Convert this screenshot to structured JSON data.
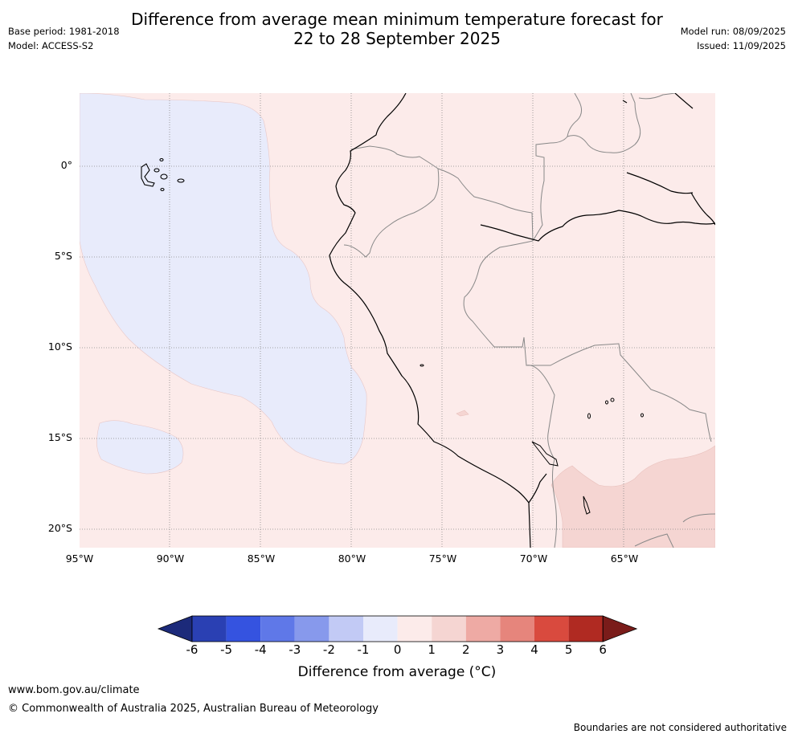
{
  "title_line1": "Difference from average mean minimum temperature forecast for",
  "title_line2": "22 to 28 September 2025",
  "base_period": "Base period: 1981-2018",
  "model": "Model: ACCESS-S2",
  "model_run": "Model run: 08/09/2025",
  "issued": "Issued: 11/09/2025",
  "lat_labels": [
    "0°",
    "5°S",
    "10°S",
    "15°S",
    "20°S"
  ],
  "lon_labels": [
    "95°W",
    "90°W",
    "85°W",
    "80°W",
    "75°W",
    "70°W",
    "65°W"
  ],
  "colorbar": {
    "ticks": [
      "-6",
      "-5",
      "-4",
      "-3",
      "-2",
      "-1",
      "0",
      "1",
      "2",
      "3",
      "4",
      "5",
      "6"
    ],
    "colors": [
      "#1c2a7a",
      "#2a40b3",
      "#3553e0",
      "#5f78e8",
      "#8799ec",
      "#c2caf5",
      "#e8ebfb",
      "#fcebea",
      "#f5d5d2",
      "#eeaaa4",
      "#e6857c",
      "#d94a3e",
      "#b02a22",
      "#7a1c1a"
    ],
    "label": "Difference from average (°C)"
  },
  "legend_colors": {
    "cool_region": "#e8ebfb",
    "warm_region": "#fcebea",
    "warmer_region": "#f5d5d2"
  },
  "footer": {
    "url": "www.bom.gov.au/climate",
    "copyright": "© Commonwealth of Australia 2025, Australian Bureau of Meteorology",
    "note": "Boundaries are not considered authoritative"
  }
}
